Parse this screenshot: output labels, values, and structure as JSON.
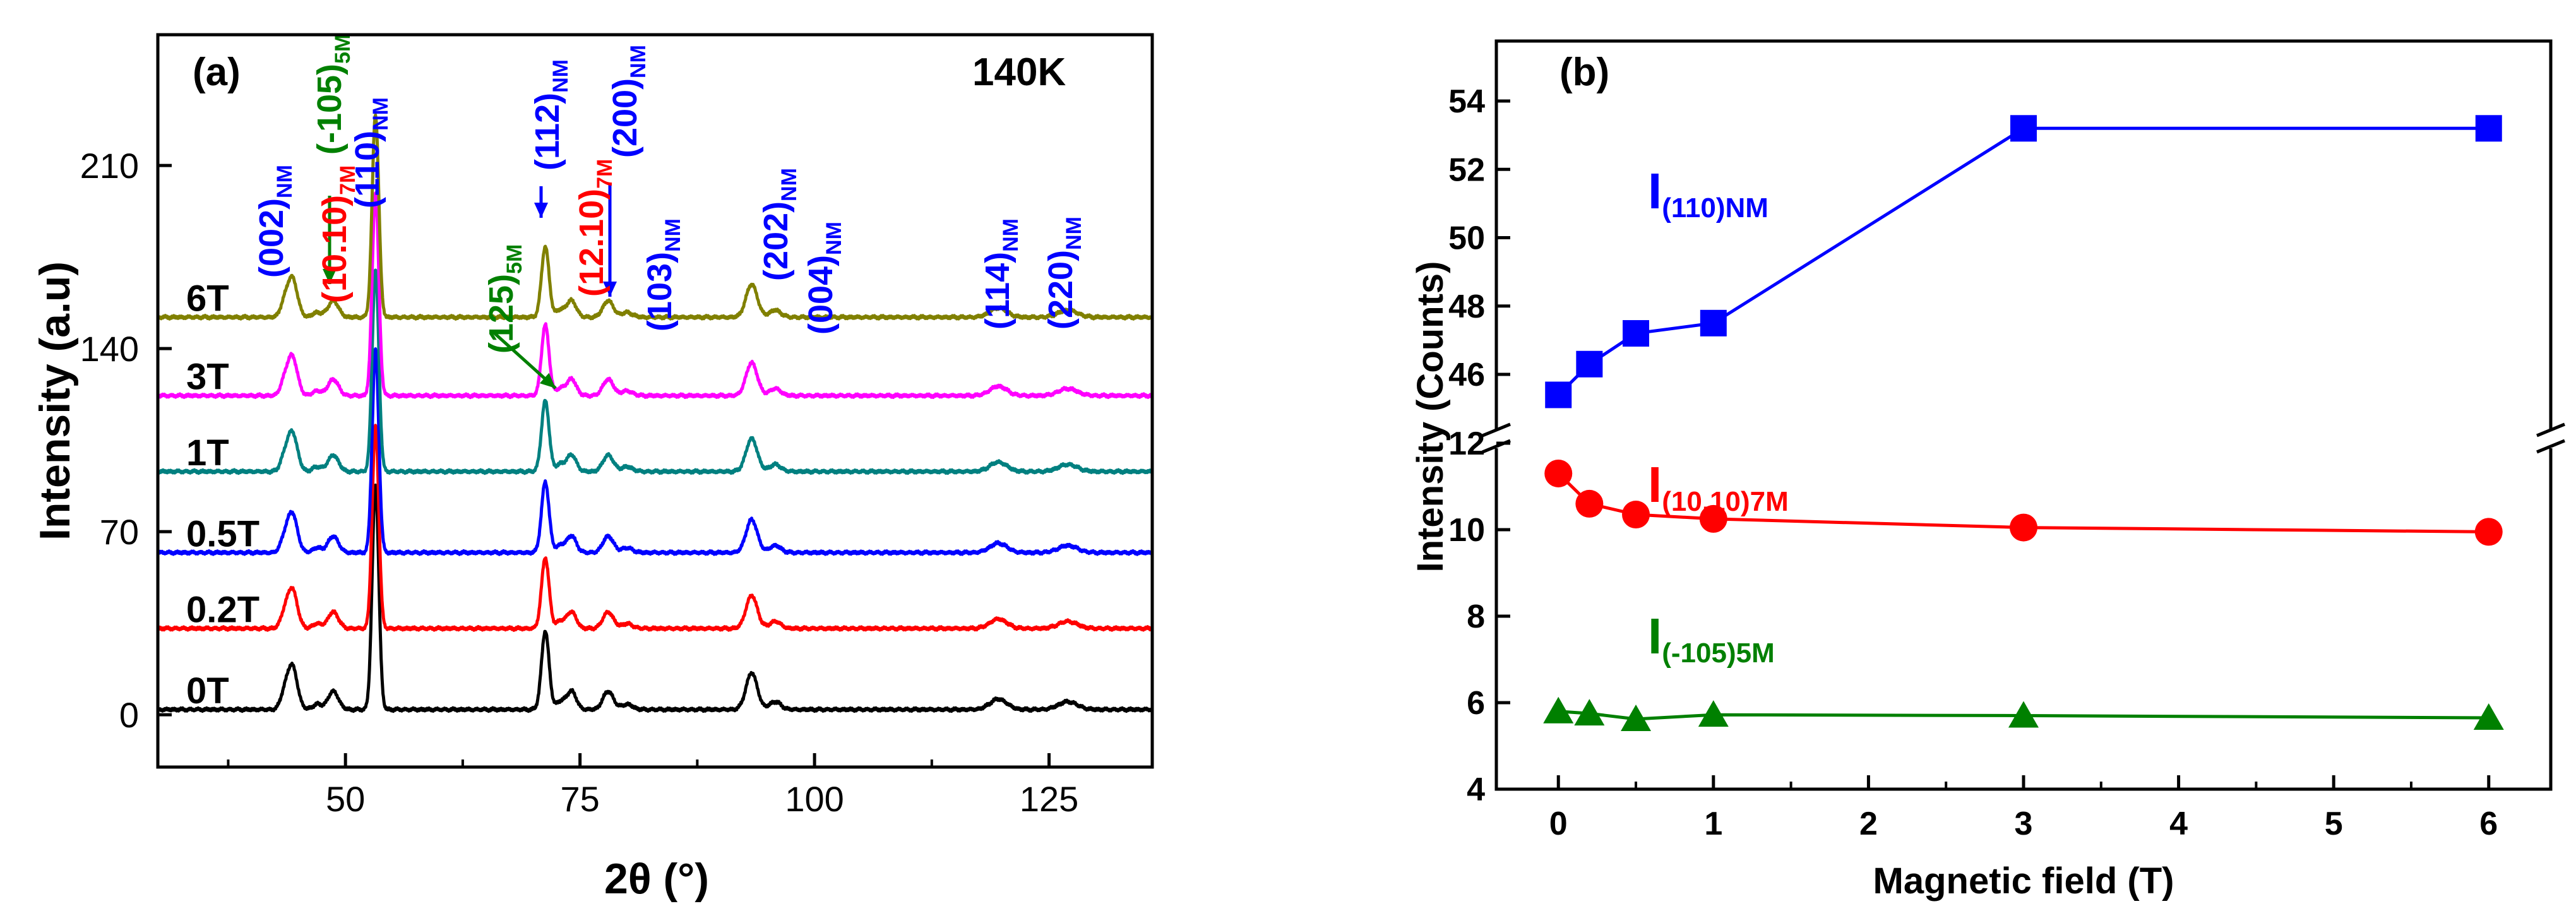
{
  "chart_data": [
    {
      "type": "line",
      "panel_label": "(a)",
      "temperature_label": "140K",
      "xlabel": "2θ (°)",
      "ylabel": "Intensity (a.u)",
      "xlim": [
        30,
        136
      ],
      "ylim": [
        -20,
        260
      ],
      "xticks": [
        50,
        75,
        100,
        125
      ],
      "yticks": [
        0,
        70,
        140,
        210
      ],
      "series": [
        {
          "name": "0T",
          "color": "#000000",
          "offset": 2,
          "scale": 1.0
        },
        {
          "name": "0.2T",
          "color": "#ff0000",
          "offset": 33,
          "scale": 0.9
        },
        {
          "name": "0.5T",
          "color": "#0000ff",
          "offset": 62,
          "scale": 0.9
        },
        {
          "name": "1T",
          "color": "#008080",
          "offset": 93,
          "scale": 0.9
        },
        {
          "name": "3T",
          "color": "#ff00ff",
          "offset": 122,
          "scale": 0.9
        },
        {
          "name": "6T",
          "color": "#808000",
          "offset": 152,
          "scale": 0.9
        }
      ],
      "peaks": [
        {
          "pos": 44.3,
          "h": 17,
          "w": 0.55
        },
        {
          "pos": 43.4,
          "h": 4,
          "w": 0.4
        },
        {
          "pos": 47.0,
          "h": 2,
          "w": 0.5
        },
        {
          "pos": 48.7,
          "h": 7,
          "w": 0.55
        },
        {
          "pos": 53.2,
          "h": 86,
          "w": 0.35
        },
        {
          "pos": 72.9,
          "h": 3,
          "w": 0.5
        },
        {
          "pos": 71.3,
          "h": 30,
          "w": 0.4
        },
        {
          "pos": 74.1,
          "h": 7,
          "w": 0.5
        },
        {
          "pos": 78.0,
          "h": 7,
          "w": 0.55
        },
        {
          "pos": 80.0,
          "h": 2,
          "w": 0.6
        },
        {
          "pos": 93.3,
          "h": 14,
          "w": 0.6
        },
        {
          "pos": 95.8,
          "h": 3,
          "w": 0.6
        },
        {
          "pos": 119.6,
          "h": 4,
          "w": 0.9
        },
        {
          "pos": 127.0,
          "h": 3,
          "w": 1.0
        }
      ],
      "annotations": [
        {
          "text": "(002)",
          "sub": "NM",
          "color": "#0000ff"
        },
        {
          "text": "(10.10)",
          "sub": "7M",
          "color": "#ff0000"
        },
        {
          "text": "(-105)",
          "sub": "5M",
          "color": "#008000"
        },
        {
          "text": "(110)",
          "sub": "NM",
          "color": "#0000ff"
        },
        {
          "text": "(125)",
          "sub": "5M",
          "color": "#008000"
        },
        {
          "text": "(112)",
          "sub": "NM",
          "color": "#0000ff"
        },
        {
          "text": "(12.10)",
          "sub": "7M",
          "color": "#ff0000"
        },
        {
          "text": "(200)",
          "sub": "NM",
          "color": "#0000ff"
        },
        {
          "text": "(103)",
          "sub": "NM",
          "color": "#0000ff"
        },
        {
          "text": "(202)",
          "sub": "NM",
          "color": "#0000ff"
        },
        {
          "text": "(004)",
          "sub": "NM",
          "color": "#0000ff"
        },
        {
          "text": "(114)",
          "sub": "NM",
          "color": "#0000ff"
        },
        {
          "text": "(220)",
          "sub": "NM",
          "color": "#0000ff"
        }
      ]
    },
    {
      "type": "line",
      "panel_label": "(b)",
      "xlabel": "Magnetic field (T)",
      "ylabel": "Intensity (Counts)",
      "xlim": [
        -0.4,
        6.4
      ],
      "xticks": [
        0,
        1,
        2,
        3,
        4,
        5,
        6
      ],
      "broken_axis": true,
      "upper_ylim": [
        45,
        54
      ],
      "upper_yticks": [
        46,
        48,
        50,
        52,
        54
      ],
      "lower_ylim": [
        4,
        12.6
      ],
      "lower_yticks": [
        4,
        6,
        8,
        10,
        12
      ],
      "series": [
        {
          "name": "I",
          "sub": "(110)NM",
          "color": "#0000ff",
          "marker": "square",
          "axis": "upper",
          "x": [
            0,
            0.2,
            0.5,
            1,
            3,
            6
          ],
          "y": [
            45.4,
            46.3,
            47.2,
            47.5,
            53.2,
            53.2
          ]
        },
        {
          "name": "I",
          "sub": "(10.10)7M",
          "color": "#ff0000",
          "marker": "circle",
          "axis": "lower",
          "x": [
            0,
            0.2,
            0.5,
            1,
            3,
            6
          ],
          "y": [
            11.3,
            10.6,
            10.35,
            10.25,
            10.05,
            9.95
          ]
        },
        {
          "name": "I",
          "sub": "(-105)5M",
          "color": "#008000",
          "marker": "triangle",
          "axis": "lower",
          "x": [
            0,
            0.2,
            0.5,
            1,
            3,
            6
          ],
          "y": [
            5.8,
            5.75,
            5.62,
            5.72,
            5.7,
            5.65
          ]
        }
      ]
    }
  ]
}
